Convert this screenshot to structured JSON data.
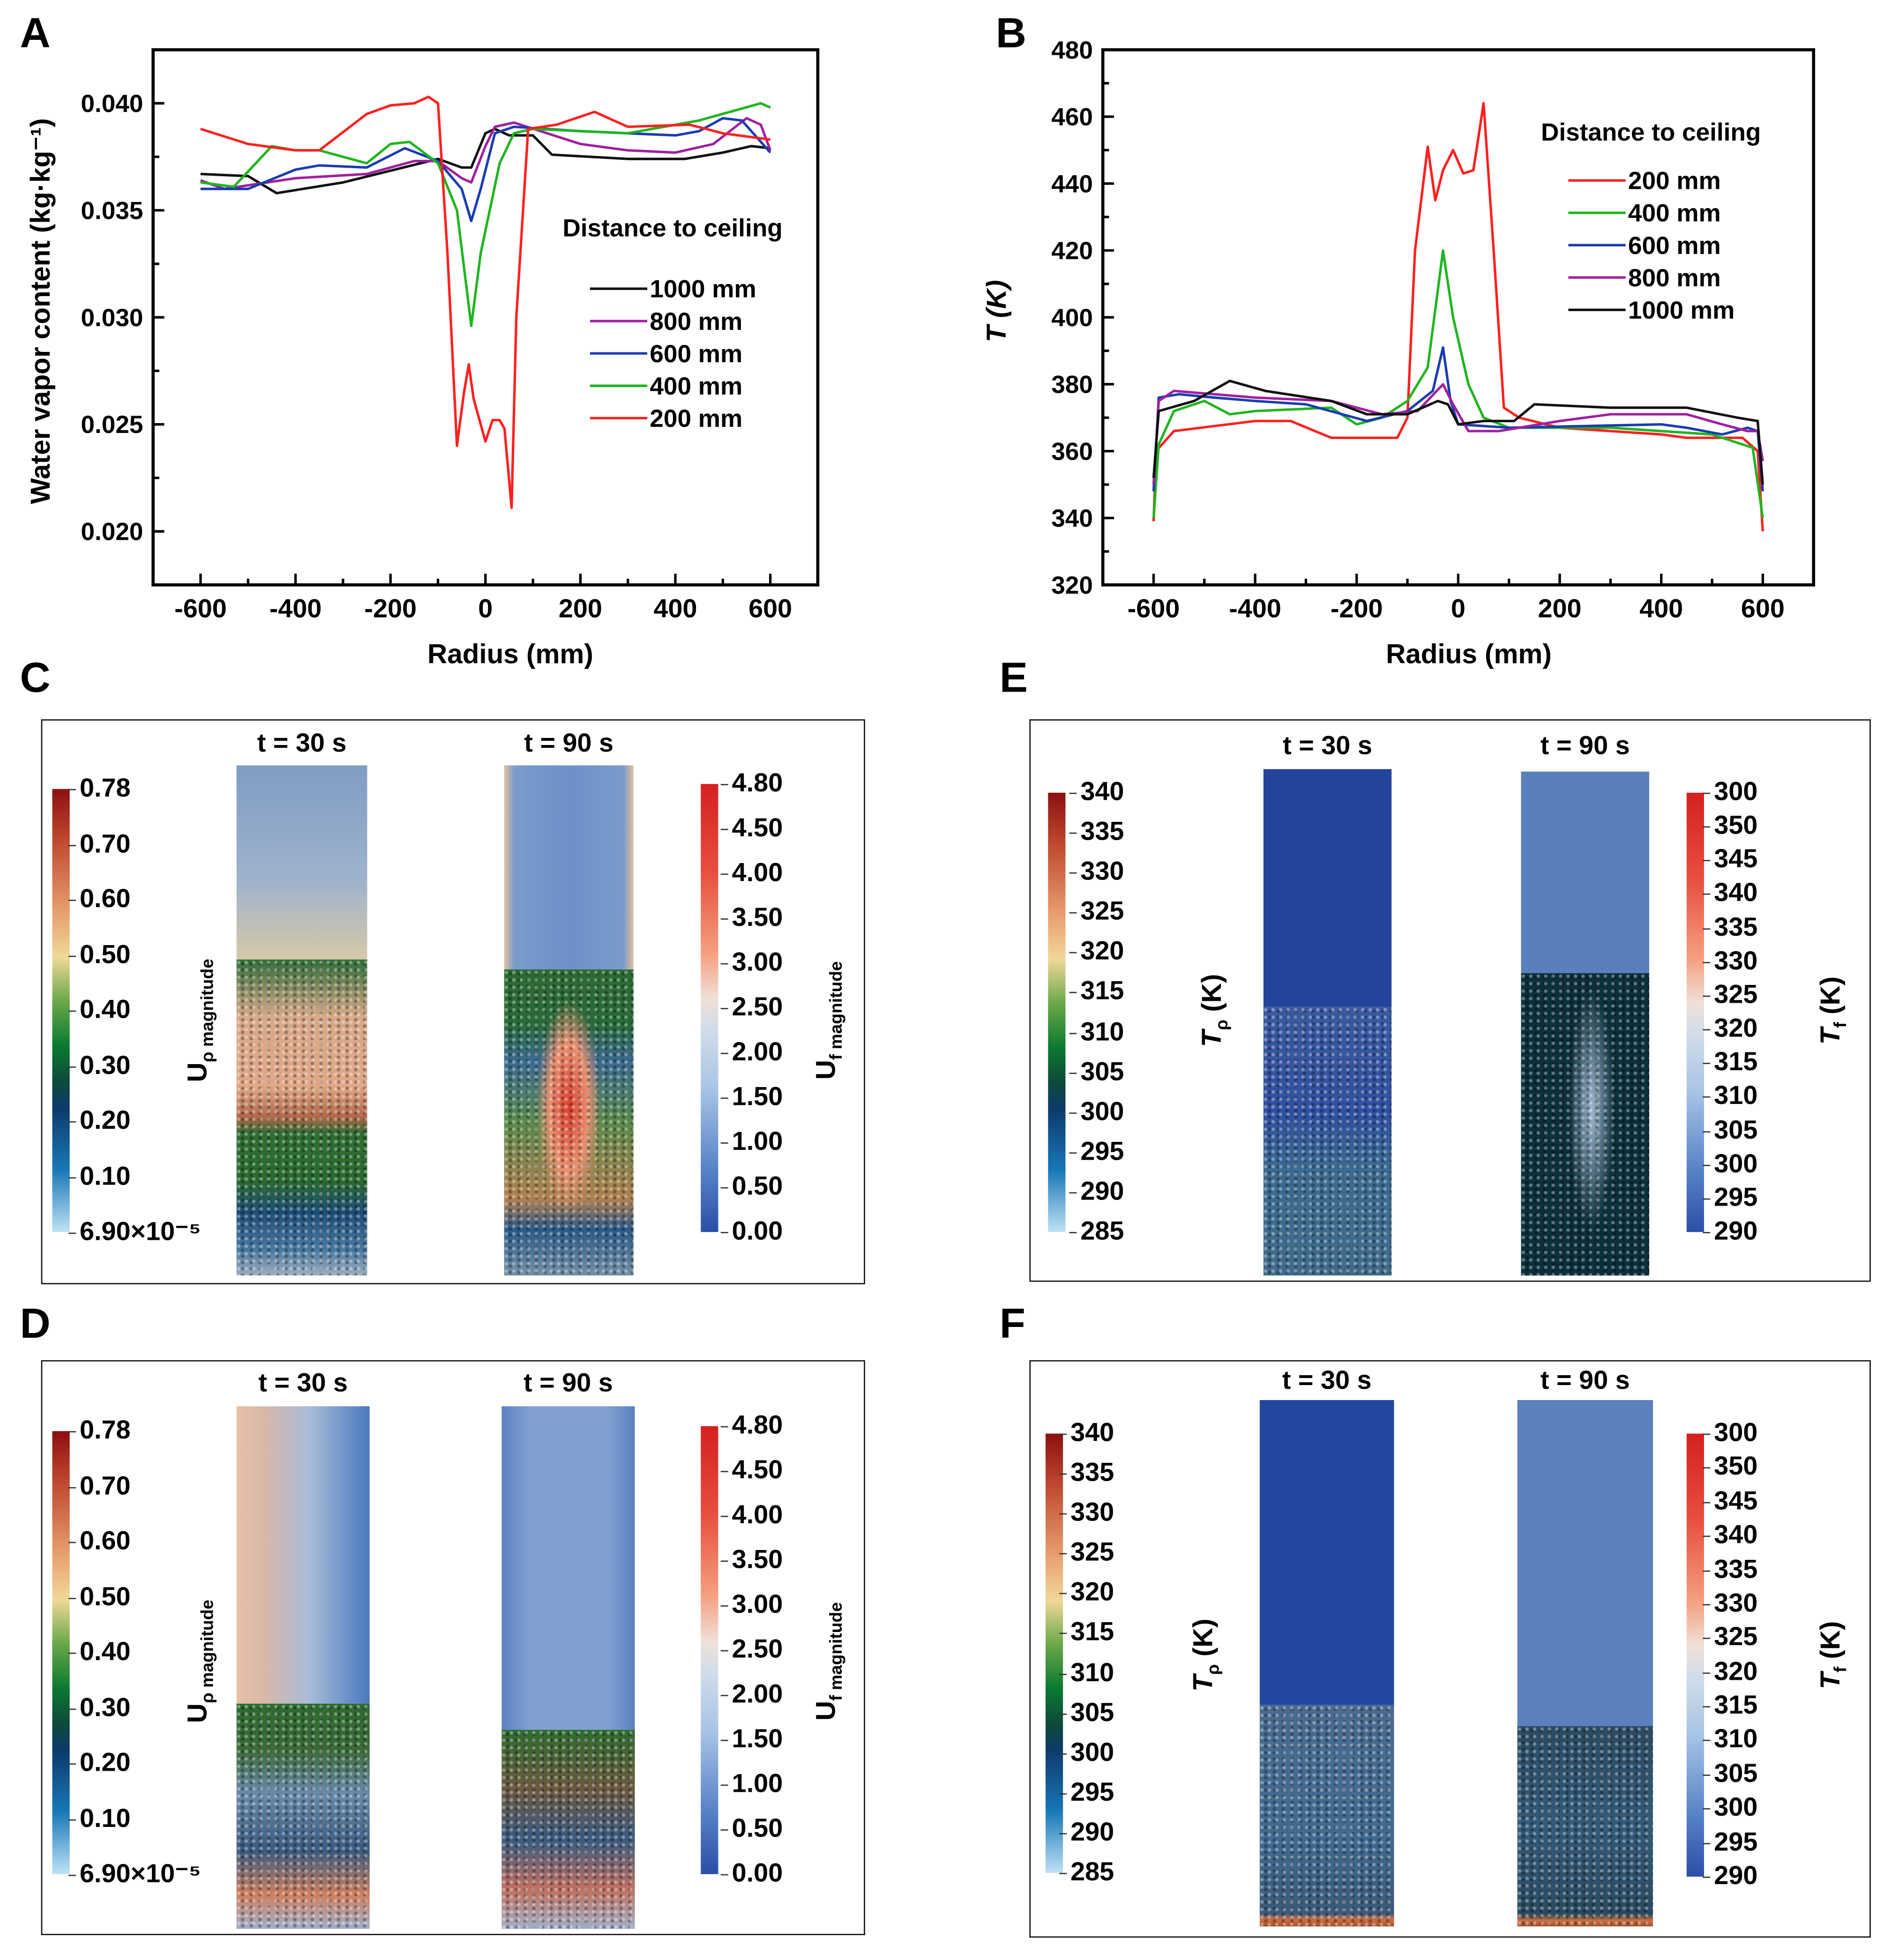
{
  "panel_labels": {
    "A": "A",
    "B": "B",
    "C": "C",
    "D": "D",
    "E": "E",
    "F": "F"
  },
  "chart_data": [
    {
      "type": "line",
      "id": "A",
      "title": "",
      "xlabel": "Radius (mm)",
      "ylabel": "Water vapor content (kg·kg⁻¹)",
      "xlim": [
        -700,
        700
      ],
      "ylim": [
        0.0175,
        0.0425
      ],
      "xticks": [
        -600,
        -400,
        -200,
        0,
        200,
        400,
        600
      ],
      "xtick_labels": [
        "-600",
        "-400",
        "-200",
        "0",
        "200",
        "400",
        "600"
      ],
      "yticks": [
        0.02,
        0.025,
        0.03,
        0.035,
        0.04
      ],
      "ytick_labels": [
        "0.020",
        "0.025",
        "0.030",
        "0.035",
        "0.040"
      ],
      "grid": false,
      "legend_title": "Distance to ceiling",
      "legend_placement": "right",
      "series": [
        {
          "name": "1000 mm",
          "color": "#111111",
          "x": [
            -600,
            -500,
            -440,
            -300,
            -100,
            -50,
            -30,
            0,
            20,
            50,
            100,
            140,
            300,
            420,
            500,
            560,
            600
          ],
          "y": [
            0.0367,
            0.0366,
            0.0358,
            0.0363,
            0.0374,
            0.037,
            0.037,
            0.0386,
            0.0388,
            0.0385,
            0.0385,
            0.0376,
            0.0374,
            0.0374,
            0.0377,
            0.038,
            0.0379
          ]
        },
        {
          "name": "800 mm",
          "color": "#a020a0",
          "x": [
            -600,
            -550,
            -400,
            -250,
            -150,
            -100,
            -50,
            -30,
            0,
            20,
            60,
            200,
            300,
            400,
            480,
            550,
            580,
            600
          ],
          "y": [
            0.0364,
            0.036,
            0.0365,
            0.0367,
            0.0373,
            0.0373,
            0.0365,
            0.0363,
            0.038,
            0.0389,
            0.0391,
            0.0381,
            0.0378,
            0.0377,
            0.0381,
            0.0393,
            0.039,
            0.0378
          ]
        },
        {
          "name": "600 mm",
          "color": "#1a3cb0",
          "x": [
            -600,
            -500,
            -400,
            -350,
            -250,
            -170,
            -100,
            -50,
            -30,
            -10,
            20,
            60,
            200,
            400,
            450,
            500,
            540,
            600
          ],
          "y": [
            0.036,
            0.036,
            0.0369,
            0.0371,
            0.037,
            0.0379,
            0.0373,
            0.036,
            0.0345,
            0.036,
            0.0386,
            0.0389,
            0.0387,
            0.0385,
            0.0387,
            0.0393,
            0.0392,
            0.0377
          ]
        },
        {
          "name": "400 mm",
          "color": "#1fb51f",
          "x": [
            -600,
            -530,
            -450,
            -400,
            -350,
            -250,
            -200,
            -160,
            -100,
            -60,
            -30,
            -10,
            30,
            60,
            100,
            300,
            450,
            580,
            600
          ],
          "y": [
            0.0363,
            0.0361,
            0.038,
            0.0378,
            0.0378,
            0.0372,
            0.0381,
            0.0382,
            0.0372,
            0.035,
            0.0296,
            0.033,
            0.0372,
            0.0386,
            0.0388,
            0.0386,
            0.0392,
            0.04,
            0.0398
          ]
        },
        {
          "name": "200 mm",
          "color": "#ff2020",
          "x": [
            -600,
            -500,
            -400,
            -350,
            -250,
            -200,
            -150,
            -120,
            -100,
            -80,
            -60,
            -45,
            -35,
            -25,
            0,
            15,
            30,
            40,
            55,
            65,
            90,
            150,
            230,
            300,
            430,
            500,
            600
          ],
          "y": [
            0.0388,
            0.0381,
            0.0378,
            0.0378,
            0.0395,
            0.0399,
            0.04,
            0.0403,
            0.04,
            0.033,
            0.024,
            0.0265,
            0.0278,
            0.0262,
            0.0242,
            0.0252,
            0.0252,
            0.0248,
            0.0211,
            0.03,
            0.0388,
            0.039,
            0.0396,
            0.0389,
            0.039,
            0.0386,
            0.0383
          ]
        }
      ]
    },
    {
      "type": "line",
      "id": "B",
      "title": "",
      "xlabel": "Radius (mm)",
      "ylabel": "T (K)",
      "xlim": [
        -700,
        700
      ],
      "ylim": [
        320,
        480
      ],
      "xticks": [
        -600,
        -400,
        -200,
        0,
        200,
        400,
        600
      ],
      "xtick_labels": [
        "-600",
        "-400",
        "-200",
        "0",
        "200",
        "400",
        "600"
      ],
      "yticks": [
        320,
        340,
        360,
        380,
        400,
        420,
        440,
        460,
        480
      ],
      "ytick_labels": [
        "320",
        "340",
        "360",
        "380",
        "400",
        "420",
        "440",
        "460",
        "480"
      ],
      "grid": false,
      "legend_title": "Distance to ceiling",
      "legend_placement": "top-right",
      "series": [
        {
          "name": "200 mm",
          "color": "#ff2020",
          "x": [
            -600,
            -595,
            -560,
            -400,
            -330,
            -250,
            -120,
            -100,
            -85,
            -60,
            -45,
            -30,
            -10,
            10,
            30,
            50,
            70,
            90,
            120,
            200,
            400,
            450,
            560,
            590,
            600
          ],
          "y": [
            339,
            360,
            366,
            369,
            369,
            364,
            364,
            370,
            420,
            451,
            435,
            444,
            450,
            443,
            444,
            464,
            420,
            373,
            370,
            367,
            365,
            364,
            364,
            360,
            336
          ]
        },
        {
          "name": "400 mm",
          "color": "#1fb51f",
          "x": [
            -600,
            -590,
            -560,
            -500,
            -450,
            -400,
            -250,
            -200,
            -150,
            -100,
            -60,
            -30,
            -10,
            20,
            50,
            100,
            300,
            500,
            580,
            600
          ],
          "y": [
            340,
            362,
            372,
            375,
            371,
            372,
            373,
            368,
            370,
            375,
            385,
            420,
            400,
            380,
            370,
            367,
            367,
            365,
            361,
            340
          ]
        },
        {
          "name": "600 mm",
          "color": "#1a3cb0",
          "x": [
            -600,
            -590,
            -550,
            -480,
            -400,
            -300,
            -180,
            -100,
            -50,
            -30,
            -15,
            0,
            100,
            400,
            450,
            520,
            570,
            590,
            600
          ],
          "y": [
            348,
            376,
            377,
            376,
            375,
            374,
            369,
            372,
            378,
            391,
            375,
            368,
            367,
            368,
            367,
            365,
            367,
            366,
            348
          ]
        },
        {
          "name": "800 mm",
          "color": "#a020a0",
          "x": [
            -600,
            -590,
            -560,
            -400,
            -250,
            -150,
            -80,
            -30,
            -10,
            20,
            80,
            200,
            300,
            450,
            520,
            570,
            590,
            600
          ],
          "y": [
            350,
            375,
            378,
            376,
            375,
            371,
            372,
            380,
            374,
            366,
            366,
            369,
            371,
            371,
            368,
            366,
            366,
            357
          ]
        },
        {
          "name": "1000 mm",
          "color": "#111111",
          "x": [
            -600,
            -590,
            -520,
            -450,
            -380,
            -250,
            -180,
            -100,
            -40,
            -20,
            0,
            50,
            110,
            150,
            300,
            450,
            550,
            590,
            600
          ],
          "y": [
            352,
            372,
            375,
            381,
            378,
            375,
            371,
            371,
            375,
            374,
            368,
            369,
            369,
            374,
            373,
            373,
            370,
            369,
            350
          ]
        }
      ]
    }
  ],
  "sim_panels": {
    "C": {
      "times": [
        "t = 30 s",
        "t = 90 s"
      ],
      "left_bar": {
        "symbol": "U",
        "sub": "ρ magnitude",
        "labels": [
          "0.78",
          "0.70",
          "0.60",
          "0.50",
          "0.40",
          "0.30",
          "0.20",
          "0.10",
          "6.90×10⁻⁵"
        ]
      },
      "right_bar": {
        "symbol": "U",
        "sub": "f magnitude",
        "labels": [
          "4.80",
          "4.50",
          "4.00",
          "3.50",
          "3.00",
          "2.50",
          "2.00",
          "1.50",
          "1.00",
          "0.50",
          "0.00"
        ]
      }
    },
    "D": {
      "times": [
        "t = 30 s",
        "t = 90 s"
      ],
      "left_bar": {
        "symbol": "U",
        "sub": "ρ magnitude",
        "labels": [
          "0.78",
          "0.70",
          "0.60",
          "0.50",
          "0.40",
          "0.30",
          "0.20",
          "0.10",
          "6.90×10⁻⁵"
        ]
      },
      "right_bar": {
        "symbol": "U",
        "sub": "f magnitude",
        "labels": [
          "4.80",
          "4.50",
          "4.00",
          "3.50",
          "3.00",
          "2.50",
          "2.00",
          "1.50",
          "1.00",
          "0.50",
          "0.00"
        ]
      }
    },
    "E": {
      "times": [
        "t = 30 s",
        "t = 90 s"
      ],
      "left_bar": {
        "symbol": "T",
        "sub": "ρ",
        "unit": " (K)",
        "labels": [
          "340",
          "335",
          "330",
          "325",
          "320",
          "315",
          "310",
          "305",
          "300",
          "295",
          "290",
          "285"
        ]
      },
      "right_bar": {
        "symbol": "T",
        "sub": "f",
        "unit": " (K)",
        "labels": [
          "300",
          "350",
          "345",
          "340",
          "335",
          "330",
          "325",
          "320",
          "315",
          "310",
          "305",
          "300",
          "295",
          "290"
        ]
      }
    },
    "F": {
      "times": [
        "t = 30 s",
        "t = 90 s"
      ],
      "left_bar": {
        "symbol": "T",
        "sub": "ρ",
        "unit": " (K)",
        "labels": [
          "340",
          "335",
          "330",
          "325",
          "320",
          "315",
          "310",
          "305",
          "300",
          "295",
          "290",
          "285"
        ]
      },
      "right_bar": {
        "symbol": "T",
        "sub": "f",
        "unit": " (K)",
        "labels": [
          "300",
          "350",
          "345",
          "340",
          "335",
          "330",
          "325",
          "320",
          "315",
          "310",
          "305",
          "300",
          "295",
          "290"
        ]
      }
    }
  },
  "colors": {
    "velocity_particle_bar": [
      "#8b1010",
      "#e07040",
      "#f0d090",
      "#5aa040",
      "#0a7a30",
      "#0d3a5a",
      "#1878b8",
      "#bfe2f5"
    ],
    "fluid_bar": [
      "#d42020",
      "#f08060",
      "#f5d0c0",
      "#dde3ea",
      "#a8c4e6",
      "#5b86c8",
      "#2a4fa8"
    ]
  }
}
